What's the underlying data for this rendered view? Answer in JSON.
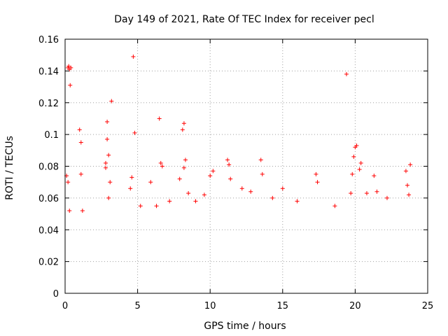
{
  "chart_data": {
    "type": "scatter",
    "title": "Day 149 of 2021, Rate Of TEC Index for receiver pecl",
    "xlabel": "GPS time / hours",
    "ylabel": "ROTI / TECUs",
    "xlim": [
      0,
      25
    ],
    "ylim": [
      0,
      0.16
    ],
    "xticks": [
      "0",
      "5",
      "10",
      "15",
      "20",
      "25"
    ],
    "yticks": [
      "0",
      "0.02",
      "0.04",
      "0.06",
      "0.08",
      "0.1",
      "0.12",
      "0.14",
      "0.16"
    ],
    "grid": true,
    "marker": "+",
    "color": "#ff0000",
    "series": [
      {
        "name": "",
        "points": [
          [
            0.2,
            0.142
          ],
          [
            0.25,
            0.143
          ],
          [
            0.3,
            0.141
          ],
          [
            0.35,
            0.131
          ],
          [
            0.4,
            0.142
          ],
          [
            4.7,
            0.149
          ],
          [
            3.2,
            0.121
          ],
          [
            19.4,
            0.138
          ],
          [
            6.5,
            0.11
          ],
          [
            2.9,
            0.108
          ],
          [
            8.2,
            0.107
          ],
          [
            8.1,
            0.103
          ],
          [
            1.0,
            0.103
          ],
          [
            1.1,
            0.095
          ],
          [
            4.8,
            0.101
          ],
          [
            2.9,
            0.097
          ],
          [
            3.0,
            0.087
          ],
          [
            20.0,
            0.092
          ],
          [
            20.1,
            0.093
          ],
          [
            19.9,
            0.086
          ],
          [
            11.2,
            0.084
          ],
          [
            11.3,
            0.081
          ],
          [
            13.5,
            0.084
          ],
          [
            6.6,
            0.082
          ],
          [
            6.7,
            0.08
          ],
          [
            2.8,
            0.082
          ],
          [
            2.8,
            0.079
          ],
          [
            23.8,
            0.081
          ],
          [
            23.5,
            0.077
          ],
          [
            8.3,
            0.084
          ],
          [
            8.2,
            0.079
          ],
          [
            10.2,
            0.077
          ],
          [
            10.0,
            0.074
          ],
          [
            13.6,
            0.075
          ],
          [
            17.3,
            0.075
          ],
          [
            19.8,
            0.075
          ],
          [
            20.3,
            0.078
          ],
          [
            20.4,
            0.082
          ],
          [
            21.3,
            0.074
          ],
          [
            0.1,
            0.074
          ],
          [
            0.2,
            0.07
          ],
          [
            1.1,
            0.075
          ],
          [
            4.6,
            0.073
          ],
          [
            4.5,
            0.066
          ],
          [
            3.1,
            0.07
          ],
          [
            5.9,
            0.07
          ],
          [
            7.9,
            0.072
          ],
          [
            11.4,
            0.072
          ],
          [
            12.2,
            0.066
          ],
          [
            15.0,
            0.066
          ],
          [
            17.4,
            0.07
          ],
          [
            19.7,
            0.063
          ],
          [
            20.8,
            0.063
          ],
          [
            21.5,
            0.064
          ],
          [
            22.2,
            0.06
          ],
          [
            23.6,
            0.068
          ],
          [
            23.7,
            0.062
          ],
          [
            1.2,
            0.052
          ],
          [
            3.0,
            0.06
          ],
          [
            8.5,
            0.063
          ],
          [
            9.0,
            0.058
          ],
          [
            9.6,
            0.062
          ],
          [
            12.8,
            0.064
          ],
          [
            14.3,
            0.06
          ],
          [
            16.0,
            0.058
          ],
          [
            18.6,
            0.055
          ],
          [
            7.2,
            0.058
          ],
          [
            6.3,
            0.055
          ],
          [
            5.2,
            0.055
          ],
          [
            0.3,
            0.052
          ]
        ]
      }
    ]
  }
}
